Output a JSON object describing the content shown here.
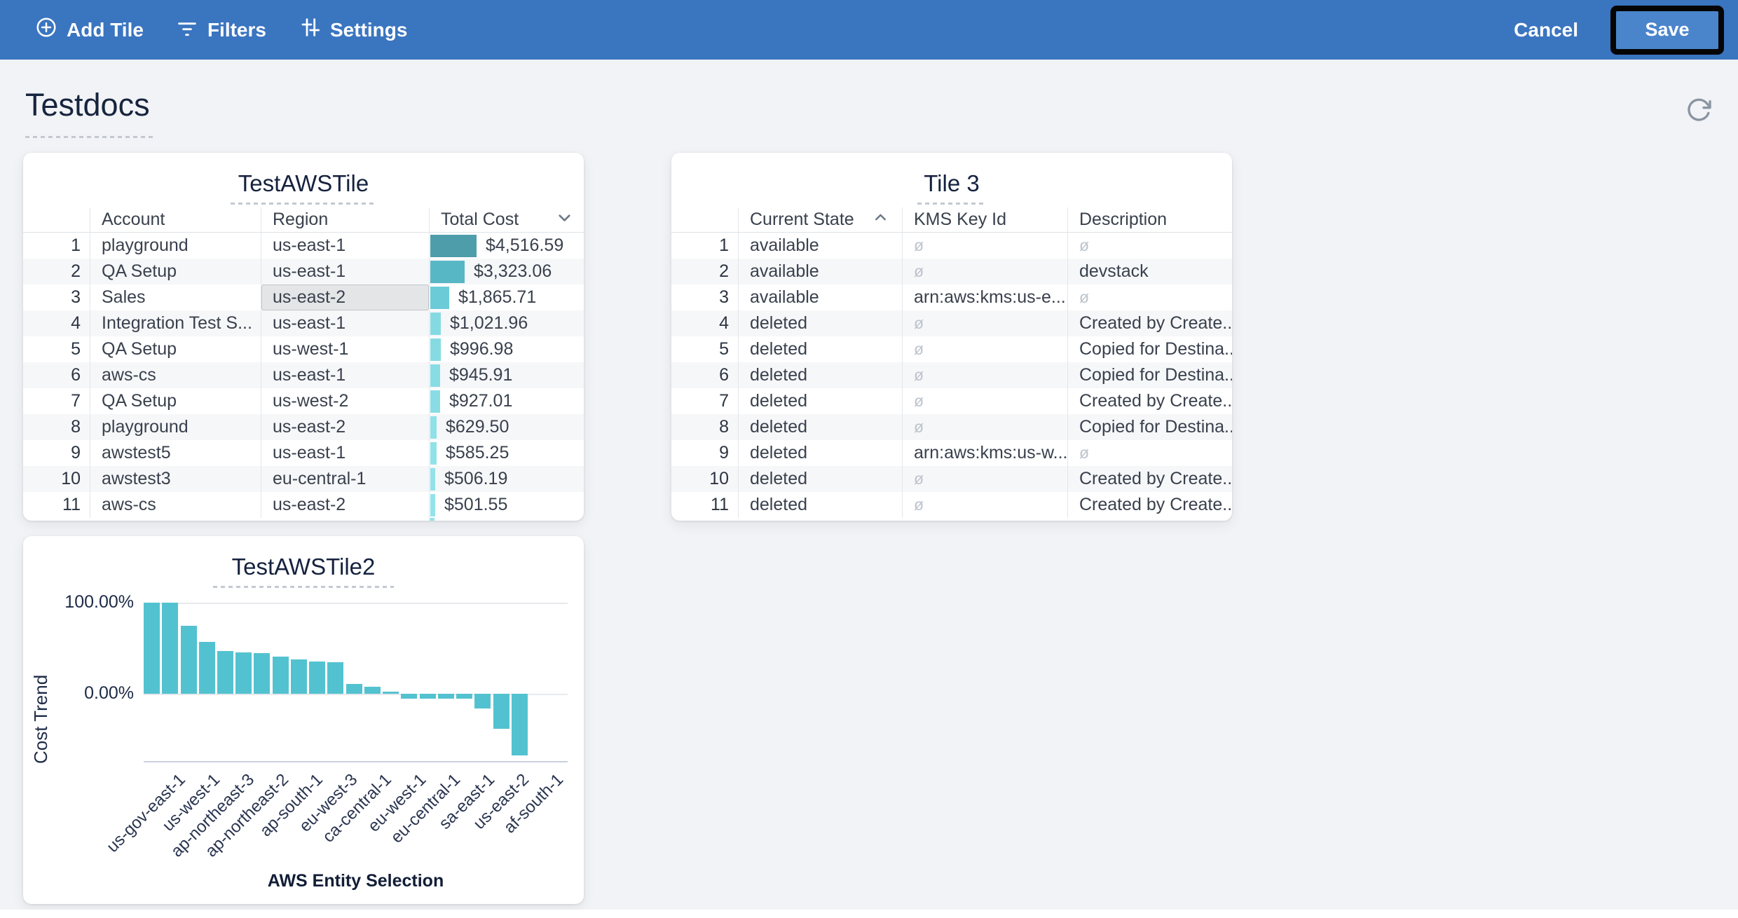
{
  "toolbar": {
    "bg_color": "#3a75c0",
    "add_tile_label": "Add Tile",
    "filters_label": "Filters",
    "settings_label": "Settings",
    "cancel_label": "Cancel",
    "save_label": "Save",
    "save_bg_color": "#4a85cc",
    "save_highlight_outline_color": "#050505"
  },
  "page": {
    "title": "Testdocs"
  },
  "tile1": {
    "title": "TestAWSTile",
    "columns": [
      "Account",
      "Region",
      "Total Cost"
    ],
    "sort": {
      "column": "Total Cost",
      "direction": "desc"
    },
    "max_cost": 4516.59,
    "selected_cell": {
      "row": 3,
      "column": "Region",
      "value": "us-east-2"
    },
    "rows": [
      {
        "n": "1",
        "account": "playground",
        "region": "us-east-1",
        "cost_label": "$4,516.59",
        "cost": 4516.59,
        "bar_color": "#4e9dab"
      },
      {
        "n": "2",
        "account": "QA Setup",
        "region": "us-east-1",
        "cost_label": "$3,323.06",
        "cost": 3323.06,
        "bar_color": "#58b7c4"
      },
      {
        "n": "3",
        "account": "Sales",
        "region": "us-east-2",
        "cost_label": "$1,865.71",
        "cost": 1865.71,
        "bar_color": "#6bcbd7",
        "region_selected": true
      },
      {
        "n": "4",
        "account": "Integration Test S...",
        "region": "us-east-1",
        "cost_label": "$1,021.96",
        "cost": 1021.96,
        "bar_color": "#85dae2"
      },
      {
        "n": "5",
        "account": "QA Setup",
        "region": "us-west-1",
        "cost_label": "$996.98",
        "cost": 996.98,
        "bar_color": "#86dbe3"
      },
      {
        "n": "6",
        "account": "aws-cs",
        "region": "us-east-1",
        "cost_label": "$945.91",
        "cost": 945.91,
        "bar_color": "#88dce4"
      },
      {
        "n": "7",
        "account": "QA Setup",
        "region": "us-west-2",
        "cost_label": "$927.01",
        "cost": 927.01,
        "bar_color": "#89dce4"
      },
      {
        "n": "8",
        "account": "playground",
        "region": "us-east-2",
        "cost_label": "$629.50",
        "cost": 629.5,
        "bar_color": "#8fe0e7"
      },
      {
        "n": "9",
        "account": "awstest5",
        "region": "us-east-1",
        "cost_label": "$585.25",
        "cost": 585.25,
        "bar_color": "#91e1e8"
      },
      {
        "n": "10",
        "account": "awstest3",
        "region": "eu-central-1",
        "cost_label": "$506.19",
        "cost": 506.19,
        "bar_color": "#93e2e9"
      },
      {
        "n": "11",
        "account": "aws-cs",
        "region": "us-east-2",
        "cost_label": "$501.55",
        "cost": 501.55,
        "bar_color": "#94e3ea"
      }
    ],
    "clipped_next_row_bar_color": "#95e3ea"
  },
  "tile3": {
    "title": "Tile 3",
    "columns": [
      "Current State",
      "KMS Key Id",
      "Description"
    ],
    "sort": {
      "column": "Current State",
      "direction": "asc"
    },
    "null_symbol": "ø",
    "rows": [
      {
        "n": "1",
        "state": "available",
        "kms": null,
        "desc": null
      },
      {
        "n": "2",
        "state": "available",
        "kms": null,
        "desc": "devstack"
      },
      {
        "n": "3",
        "state": "available",
        "kms": "arn:aws:kms:us-e...",
        "desc": null
      },
      {
        "n": "4",
        "state": "deleted",
        "kms": null,
        "desc": "Created by Create..."
      },
      {
        "n": "5",
        "state": "deleted",
        "kms": null,
        "desc": "Copied for Destina..."
      },
      {
        "n": "6",
        "state": "deleted",
        "kms": null,
        "desc": "Copied for Destina..."
      },
      {
        "n": "7",
        "state": "deleted",
        "kms": null,
        "desc": "Created by Create..."
      },
      {
        "n": "8",
        "state": "deleted",
        "kms": null,
        "desc": "Copied for Destina..."
      },
      {
        "n": "9",
        "state": "deleted",
        "kms": "arn:aws:kms:us-w...",
        "desc": null
      },
      {
        "n": "10",
        "state": "deleted",
        "kms": null,
        "desc": "Created by Create..."
      },
      {
        "n": "11",
        "state": "deleted",
        "kms": null,
        "desc": "Created by Create..."
      }
    ]
  },
  "chart_data": {
    "type": "bar",
    "title": "TestAWSTile2",
    "xlabel": "AWS Entity Selection",
    "ylabel": "Cost Trend",
    "yticks": {
      "top": "100.00%",
      "zero": "0.00%"
    },
    "ylim": [
      -77,
      100
    ],
    "grid": "horizontal",
    "legend": "none",
    "bar_color": "#53c2d0",
    "values": [
      100,
      100,
      75,
      57,
      47,
      45.5,
      45,
      41,
      38,
      35.5,
      35,
      10.5,
      7.5,
      2.5,
      -5,
      -5,
      -5,
      -5,
      -16,
      -38.5,
      -68
    ],
    "x_tick_labels": [
      "us-gov-east-1",
      "us-west-1",
      "ap-northeast-3",
      "ap-northeast-2",
      "ap-south-1",
      "eu-west-3",
      "ca-central-1",
      "eu-west-1",
      "eu-central-1",
      "sa-east-1",
      "us-east-2",
      "af-south-1"
    ]
  }
}
